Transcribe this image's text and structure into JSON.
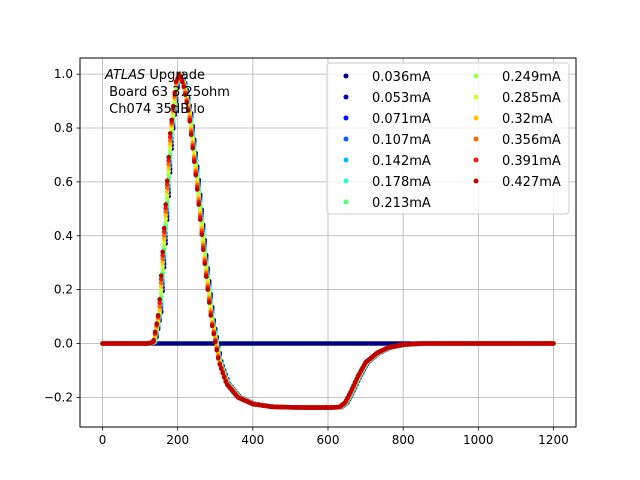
{
  "chart_data": {
    "type": "scatter",
    "annotation": {
      "italic": "ATLAS",
      "line1_rest": " Upgrade",
      "line2": " Board 63 3.25ohm",
      "line3": " Ch074 35dB lo"
    },
    "xlim": [
      -60,
      1260
    ],
    "ylim": [
      -0.31,
      1.06
    ],
    "xticks": [
      0,
      200,
      400,
      600,
      800,
      1000,
      1200
    ],
    "yticks": [
      -0.2,
      0.0,
      0.2,
      0.4,
      0.6,
      0.8,
      1.0
    ],
    "xtick_labels": [
      "0",
      "200",
      "400",
      "600",
      "800",
      "1000",
      "1200"
    ],
    "ytick_labels": [
      "−0.2",
      "0.0",
      "0.2",
      "0.4",
      "0.6",
      "0.8",
      "1.0"
    ],
    "grid": true,
    "legend_position": "top-right",
    "legend_columns": 2,
    "series": [
      {
        "name": "0.036mA",
        "color": "#00007f",
        "shape": "flat"
      },
      {
        "name": "0.053mA",
        "color": "#0000b8",
        "shape": "pulse"
      },
      {
        "name": "0.071mA",
        "color": "#0011ff",
        "shape": "pulse"
      },
      {
        "name": "0.107mA",
        "color": "#0060ff",
        "shape": "pulse"
      },
      {
        "name": "0.142mA",
        "color": "#00c0ff",
        "shape": "pulse"
      },
      {
        "name": "0.178mA",
        "color": "#29ffce",
        "shape": "pulse"
      },
      {
        "name": "0.213mA",
        "color": "#49ff7a",
        "shape": "pulse"
      },
      {
        "name": "0.249mA",
        "color": "#a4ff53",
        "shape": "pulse"
      },
      {
        "name": "0.285mA",
        "color": "#ceff29",
        "shape": "pulse"
      },
      {
        "name": "0.32mA",
        "color": "#ffc400",
        "shape": "pulse"
      },
      {
        "name": "0.356mA",
        "color": "#ff6800",
        "shape": "pulse"
      },
      {
        "name": "0.391mA",
        "color": "#f11d00",
        "shape": "pulse"
      },
      {
        "name": "0.427mA",
        "color": "#c10000",
        "shape": "pulse"
      }
    ],
    "pulse_profile": {
      "x": [
        0,
        120,
        135,
        150,
        165,
        180,
        195,
        205,
        215,
        230,
        250,
        270,
        290,
        310,
        330,
        360,
        400,
        450,
        500,
        550,
        600,
        630,
        645,
        660,
        680,
        700,
        730,
        760,
        800,
        850,
        900,
        1000,
        1100,
        1200
      ],
      "y": [
        0.0,
        0.0,
        0.005,
        0.12,
        0.45,
        0.78,
        0.97,
        1.0,
        0.96,
        0.85,
        0.6,
        0.32,
        0.08,
        -0.07,
        -0.15,
        -0.2,
        -0.225,
        -0.235,
        -0.237,
        -0.238,
        -0.238,
        -0.236,
        -0.22,
        -0.18,
        -0.12,
        -0.07,
        -0.035,
        -0.015,
        -0.004,
        0.0,
        0.0,
        0.0,
        0.0,
        0.0
      ]
    },
    "flat_profile": {
      "x": [
        0,
        1200
      ],
      "y": [
        0.0,
        0.0
      ]
    }
  }
}
